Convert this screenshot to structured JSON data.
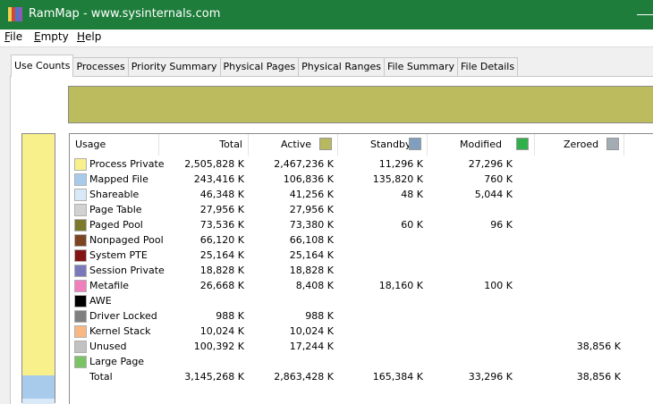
{
  "window_title": "RamMap - www.sysinternals.com",
  "menu": [
    "File",
    "Empty",
    "Help"
  ],
  "tabs": [
    "Use Counts",
    "Processes",
    "Priority Summary",
    "Physical Pages",
    "Physical Ranges",
    "File Summary",
    "File Details"
  ],
  "active_tab": 0,
  "table": {
    "columns": [
      {
        "label": "Usage"
      },
      {
        "label": "Total"
      },
      {
        "label": "Active",
        "color": "#b8b860"
      },
      {
        "label": "Standby",
        "color": "#809fbf"
      },
      {
        "label": "Modified",
        "color": "#2fb04a"
      },
      {
        "label": "Zeroed",
        "color": "#a3abb3"
      }
    ],
    "rows": [
      {
        "label": "Process Private",
        "color": "#f8f08a",
        "cells": [
          "2,505,828 K",
          "2,467,236 K",
          "11,296 K",
          "27,296 K",
          null
        ]
      },
      {
        "label": "Mapped File",
        "color": "#a9cbeb",
        "cells": [
          "243,416 K",
          "106,836 K",
          "135,820 K",
          "760 K",
          null
        ]
      },
      {
        "label": "Shareable",
        "color": "#d9e9f8",
        "cells": [
          "46,348 K",
          "41,256 K",
          "48 K",
          "5,044 K",
          null
        ]
      },
      {
        "label": "Page Table",
        "color": "#d2d2d2",
        "cells": [
          "27,956 K",
          "27,956 K",
          null,
          null,
          null
        ]
      },
      {
        "label": "Paged Pool",
        "color": "#7b7a2c",
        "cells": [
          "73,536 K",
          "73,380 K",
          "60 K",
          "96 K",
          null
        ]
      },
      {
        "label": "Nonpaged Pool",
        "color": "#7c4422",
        "cells": [
          "66,120 K",
          "66,108 K",
          null,
          null,
          null
        ]
      },
      {
        "label": "System PTE",
        "color": "#821414",
        "cells": [
          "25,164 K",
          "25,164 K",
          null,
          null,
          null
        ]
      },
      {
        "label": "Session Private",
        "color": "#7a7abb",
        "cells": [
          "18,828 K",
          "18,828 K",
          null,
          null,
          null
        ]
      },
      {
        "label": "Metafile",
        "color": "#f07fbb",
        "cells": [
          "26,668 K",
          "8,408 K",
          "18,160 K",
          "100 K",
          null
        ]
      },
      {
        "label": "AWE",
        "color": "#000000",
        "cells": [
          null,
          null,
          null,
          null,
          null
        ]
      },
      {
        "label": "Driver Locked",
        "color": "#808080",
        "cells": [
          "988 K",
          "988 K",
          null,
          null,
          null
        ]
      },
      {
        "label": "Kernel Stack",
        "color": "#f9b883",
        "cells": [
          "10,024 K",
          "10,024 K",
          null,
          null,
          null
        ]
      },
      {
        "label": "Unused",
        "color": "#c2c2c2",
        "cells": [
          "100,392 K",
          "17,244 K",
          null,
          null,
          "38,856 K"
        ]
      },
      {
        "label": "Large Page",
        "color": "#7cc266",
        "cells": [
          null,
          null,
          null,
          null,
          null
        ]
      },
      {
        "label": "Total",
        "cells": [
          "3,145,268 K",
          "2,863,428 K",
          "165,384 K",
          "33,296 K",
          "38,856 K"
        ]
      }
    ]
  }
}
